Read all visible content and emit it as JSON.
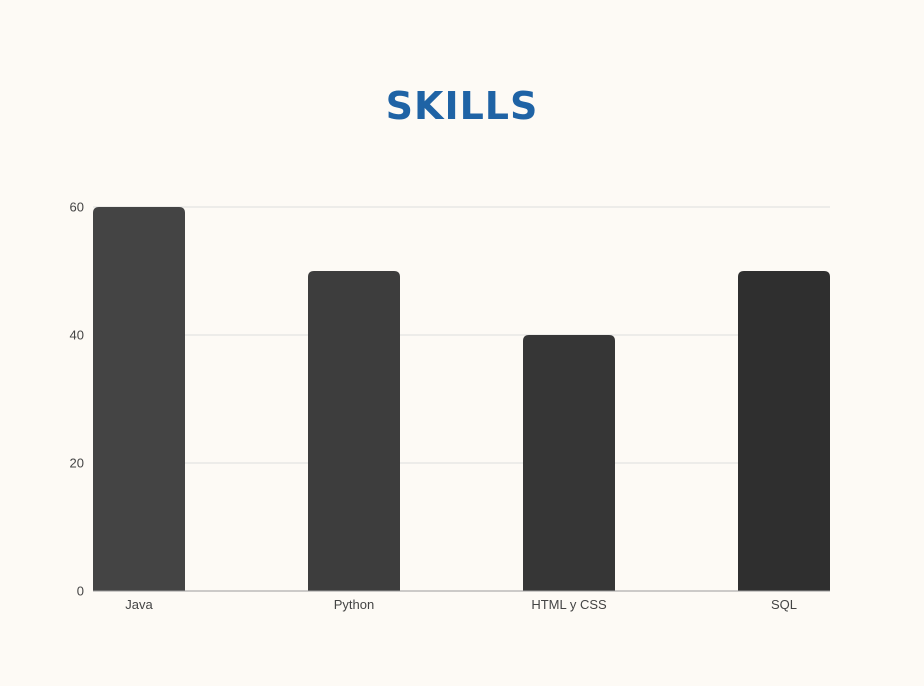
{
  "chart_data": {
    "type": "bar",
    "title": "SKILLS",
    "categories": [
      "Java",
      "Python",
      "HTML y CSS",
      "SQL"
    ],
    "values": [
      60,
      50,
      40,
      50
    ],
    "bar_colors": [
      "#444444",
      "#3d3d3d",
      "#363636",
      "#2f2f2f"
    ],
    "yticks": [
      0,
      20,
      40,
      60
    ],
    "ylim": [
      0,
      60
    ],
    "grid": true,
    "legend": false,
    "xlabel": "",
    "ylabel": ""
  },
  "colors": {
    "title": "#1f63a5",
    "background": "#fdfaf5",
    "gridline": "#dddddd",
    "axis": "#9a9a9a"
  }
}
